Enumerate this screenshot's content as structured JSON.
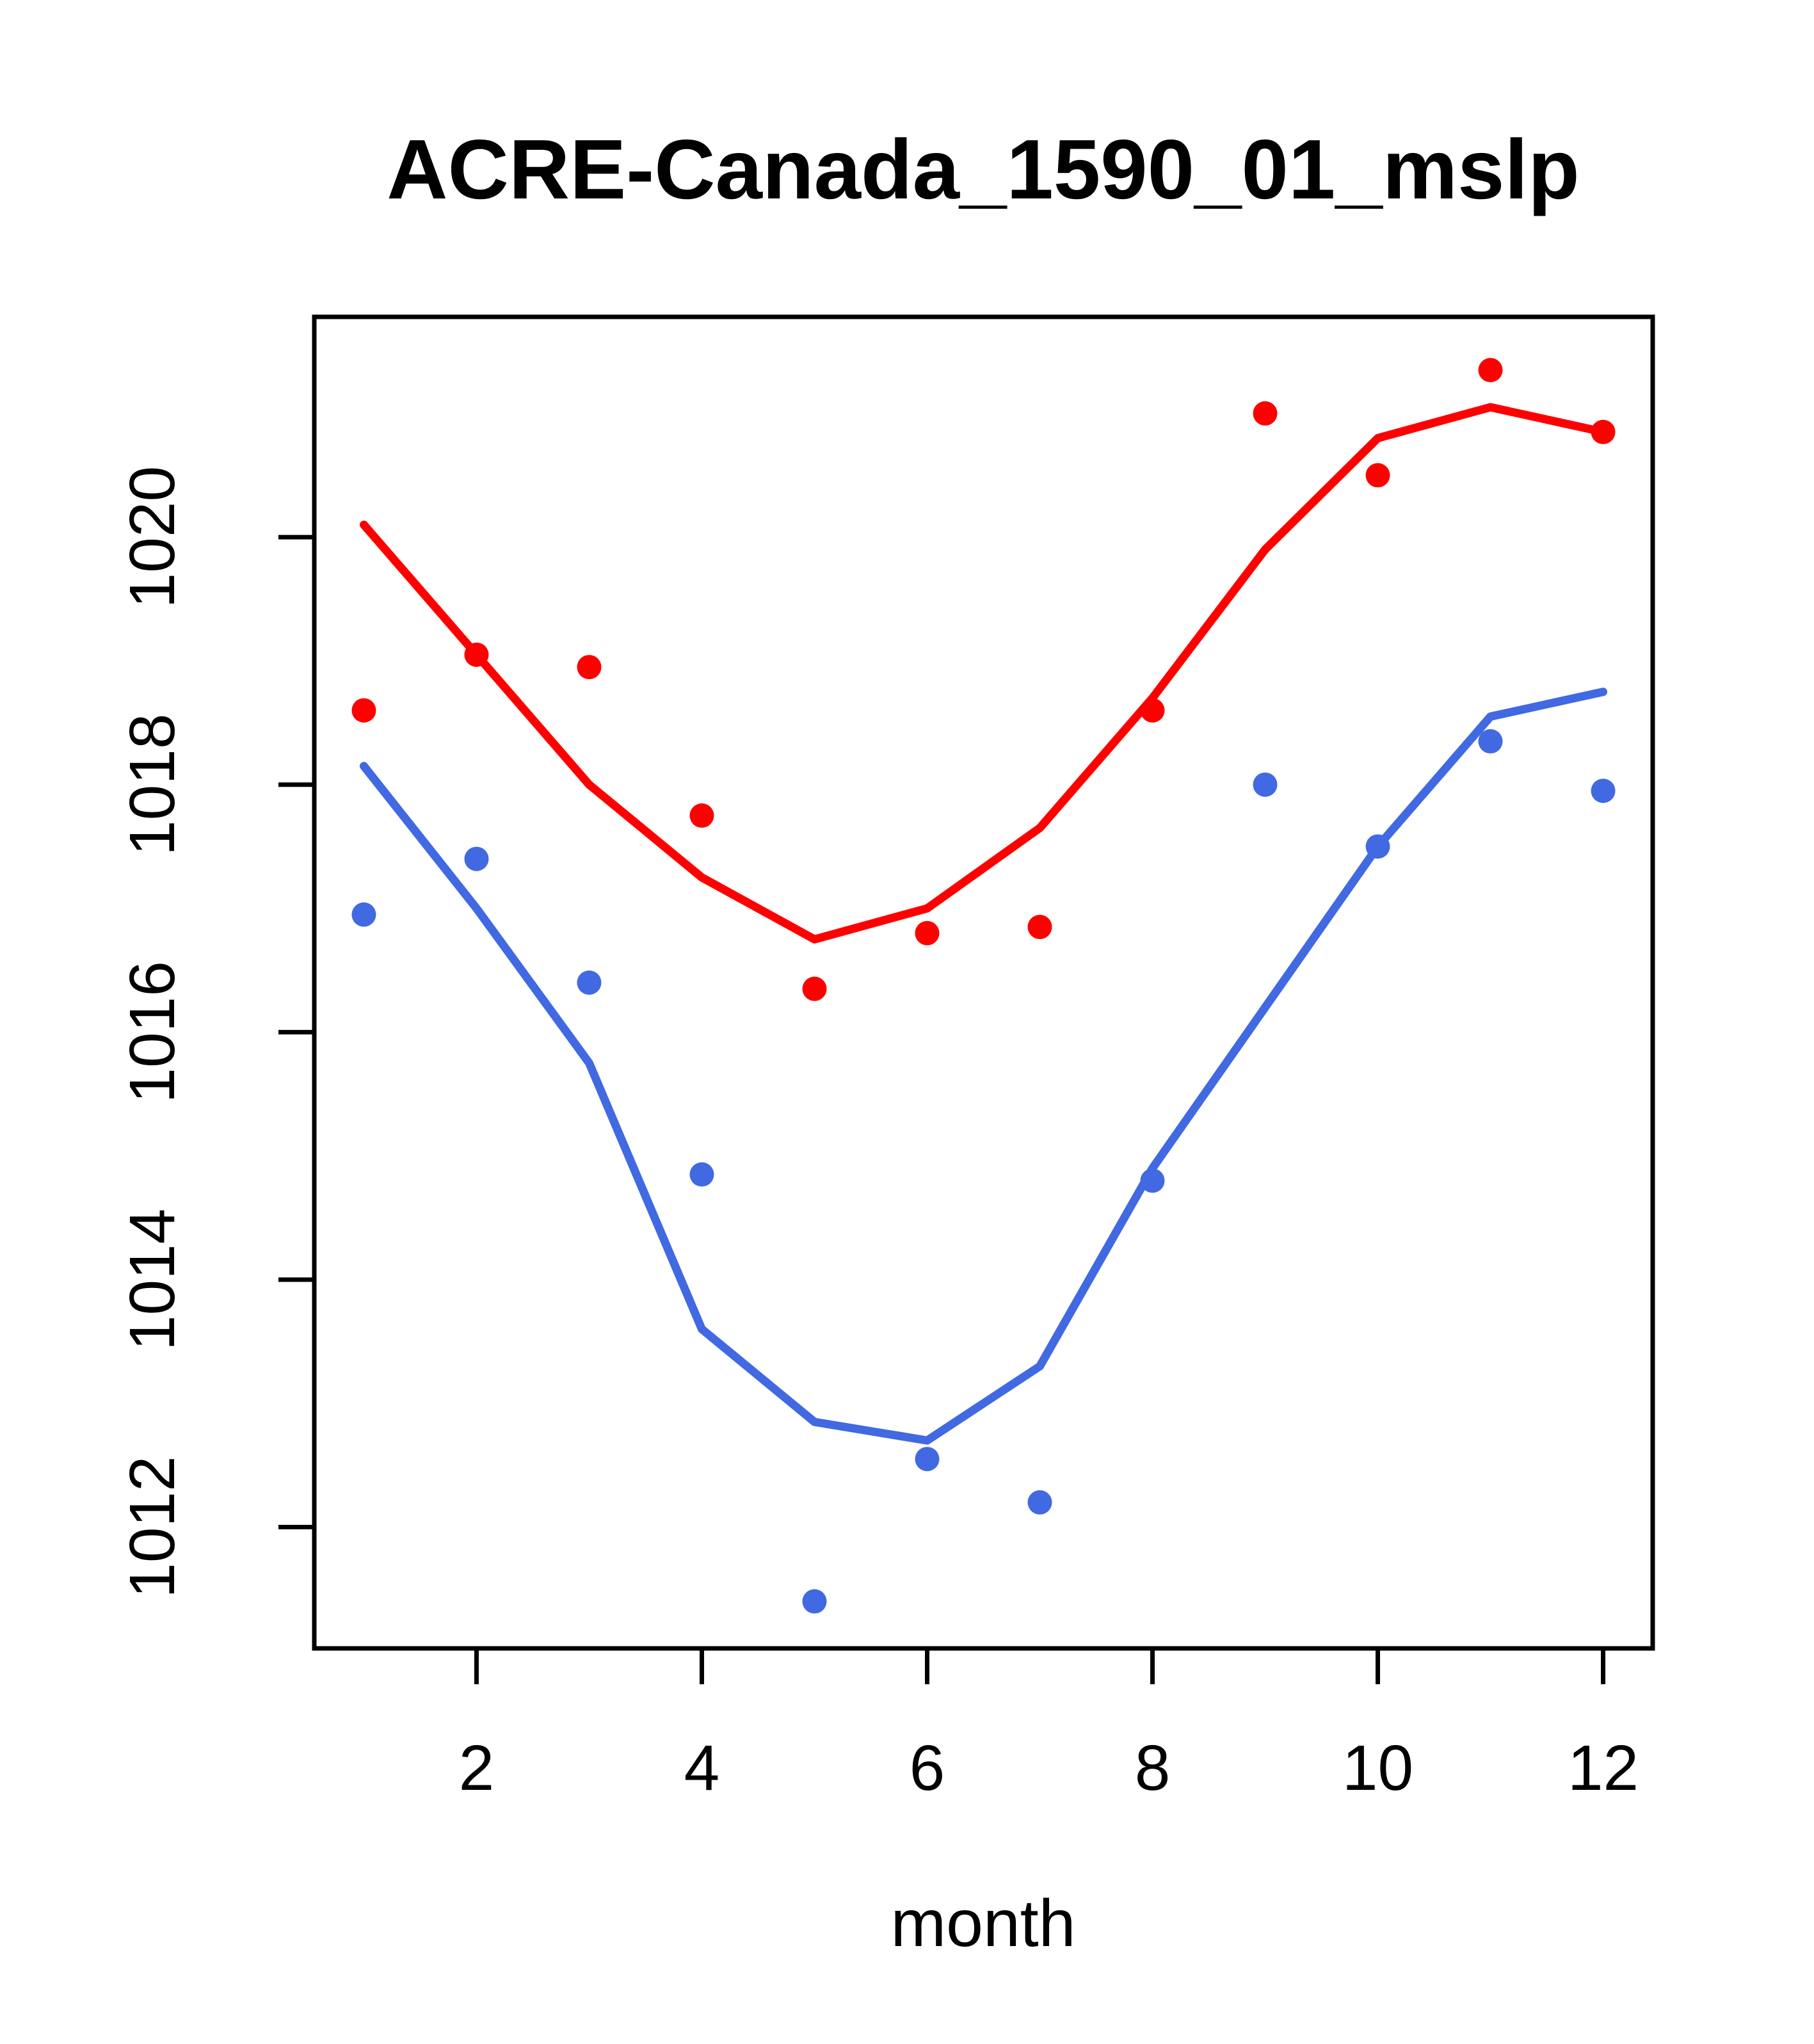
{
  "title": "ACRE-Canada_1590_01_mslp",
  "xlabel": "month",
  "chart_data": {
    "type": "scatter",
    "title": "ACRE-Canada_1590_01_mslp",
    "xlabel": "month",
    "ylabel": "",
    "x": [
      1,
      2,
      3,
      4,
      5,
      6,
      7,
      8,
      9,
      10,
      11,
      12
    ],
    "x_ticks": [
      2,
      4,
      6,
      8,
      10,
      12
    ],
    "y_ticks": [
      1012,
      1014,
      1016,
      1018,
      1020
    ],
    "xlim": [
      0.56,
      12.44
    ],
    "ylim": [
      1011.02,
      1021.78
    ],
    "grid": "off",
    "legend": "none",
    "colors": {
      "red_series": "#FF0000",
      "blue_series": "#4169E1",
      "axis": "#000000"
    },
    "series": [
      {
        "name": "red-points",
        "kind": "points",
        "color_key": "red_series",
        "values": [
          1018.6,
          1019.05,
          1018.95,
          1017.75,
          1016.35,
          1016.8,
          1016.85,
          1018.6,
          1021.0,
          1020.5,
          1021.35,
          1020.85
        ]
      },
      {
        "name": "red-smooth-line",
        "kind": "line",
        "color_key": "red_series",
        "values": [
          1020.1,
          1019.05,
          1018.0,
          1017.25,
          1016.75,
          1017.0,
          1017.65,
          1018.7,
          1019.9,
          1020.8,
          1021.05,
          1020.85
        ]
      },
      {
        "name": "blue-points",
        "kind": "points",
        "color_key": "blue_series",
        "values": [
          1016.95,
          1017.4,
          1016.4,
          1014.85,
          1011.4,
          1012.55,
          1012.2,
          1014.8,
          1018.0,
          1017.5,
          1018.35,
          1017.95
        ]
      },
      {
        "name": "blue-smooth-line",
        "kind": "line",
        "color_key": "blue_series",
        "values": [
          1018.15,
          1017.0,
          1015.75,
          1013.6,
          1012.85,
          1012.7,
          1013.3,
          1014.9,
          1016.2,
          1017.5,
          1018.55,
          1018.75
        ]
      }
    ]
  }
}
